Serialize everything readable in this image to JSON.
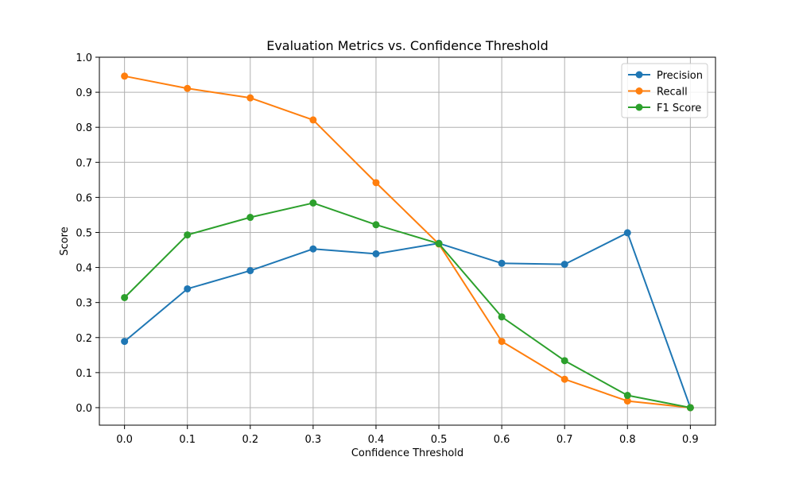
{
  "chart_data": {
    "type": "line",
    "title": "Evaluation Metrics vs. Confidence Threshold",
    "xlabel": "Confidence Threshold",
    "ylabel": "Score",
    "x": [
      0.0,
      0.1,
      0.2,
      0.3,
      0.4,
      0.5,
      0.6,
      0.7,
      0.8,
      0.9
    ],
    "xlim": [
      -0.04,
      0.94
    ],
    "ylim": [
      -0.05,
      1.0
    ],
    "xticks": [
      "0.0",
      "0.1",
      "0.2",
      "0.3",
      "0.4",
      "0.5",
      "0.6",
      "0.7",
      "0.8",
      "0.9"
    ],
    "yticks": [
      "0.0",
      "0.1",
      "0.2",
      "0.3",
      "0.4",
      "0.5",
      "0.6",
      "0.7",
      "0.8",
      "0.9",
      "1.0"
    ],
    "grid": true,
    "legend_position": "top-right",
    "series": [
      {
        "name": "Precision",
        "color": "#1f77b4",
        "marker": "circle",
        "values": [
          0.189,
          0.339,
          0.391,
          0.453,
          0.439,
          0.469,
          0.412,
          0.409,
          0.499,
          0.0
        ]
      },
      {
        "name": "Recall",
        "color": "#ff7f0e",
        "marker": "circle",
        "values": [
          0.946,
          0.911,
          0.884,
          0.821,
          0.642,
          0.467,
          0.189,
          0.081,
          0.019,
          0.0
        ]
      },
      {
        "name": "F1 Score",
        "color": "#2ca02c",
        "marker": "circle",
        "values": [
          0.314,
          0.493,
          0.543,
          0.584,
          0.522,
          0.468,
          0.259,
          0.134,
          0.035,
          0.0
        ]
      }
    ]
  }
}
